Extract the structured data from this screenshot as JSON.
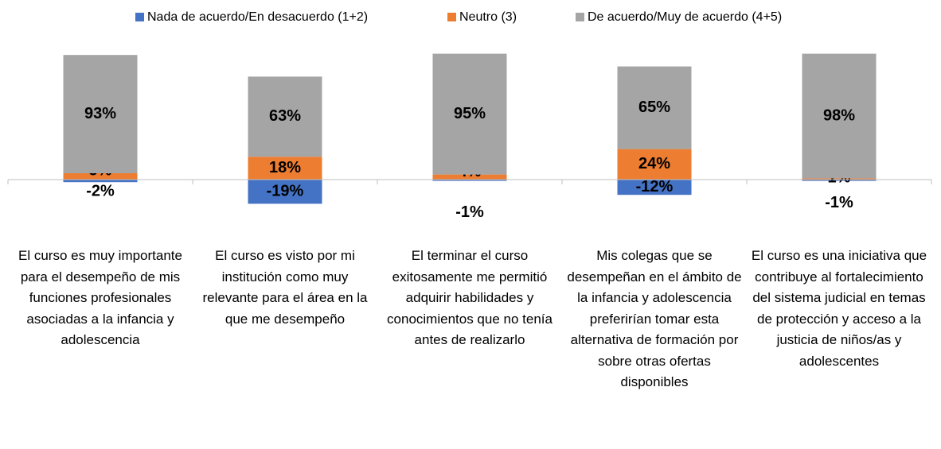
{
  "chart_data": {
    "type": "bar",
    "stacked": true,
    "categories": [
      "El curso es muy importante para el desempeño de mis funciones profesionales asociadas a la infancia y adolescencia",
      "El curso es visto por mi institución como muy relevante para el área en la que me desempeño",
      "El terminar el curso exitosamente me permitió adquirir habilidades y conocimientos que no tenía antes de realizarlo",
      "Mis colegas que se desempeñan en el ámbito de la infancia y adolescencia preferirían tomar esta alternativa de formación por sobre otras ofertas disponibles",
      "El curso es una iniciativa que contribuye al fortalecimiento del sistema judicial en temas de protección y acceso a la justicia de niños/as y adolescentes"
    ],
    "series": [
      {
        "name": "Nada de acuerdo/En desacuerdo (1+2)",
        "color": "#4472c4",
        "values": [
          -2,
          -19,
          -1,
          -12,
          -1
        ],
        "value_labels": [
          "-2%",
          "-19%",
          "-1%",
          "-12%",
          "-1%"
        ]
      },
      {
        "name": "Neutro (3)",
        "color": "#ed7d31",
        "values": [
          5,
          18,
          4,
          24,
          1
        ],
        "value_labels": [
          "5%",
          "18%",
          "4%",
          "24%",
          "1%"
        ]
      },
      {
        "name": "De acuerdo/Muy de acuerdo (4+5)",
        "color": "#a5a5a5",
        "values": [
          93,
          63,
          95,
          65,
          98
        ],
        "value_labels": [
          "93%",
          "63%",
          "95%",
          "65%",
          "98%"
        ]
      }
    ],
    "legend": "top"
  }
}
